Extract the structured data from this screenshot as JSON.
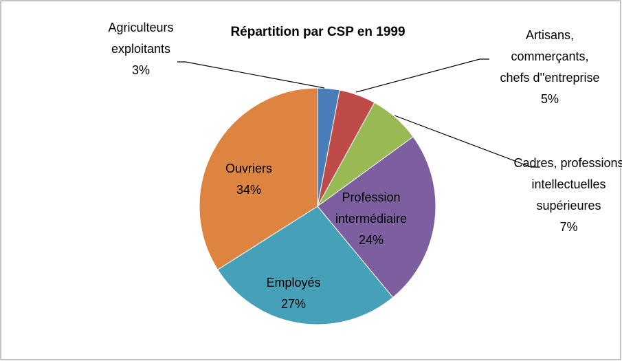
{
  "chart_data": {
    "type": "pie",
    "title": "Répartition par CSP en 1999",
    "categories": [
      "Agriculteurs exploitants",
      "Artisans, commerçants, chefs d''entreprise",
      "Cadres, professions intellectuelles supérieures",
      "Profession intermédiaire",
      "Employés",
      "Ouvriers"
    ],
    "values": [
      3,
      5,
      7,
      24,
      27,
      34
    ],
    "value_labels": [
      "3%",
      "5%",
      "7%",
      "24%",
      "27%",
      "34%"
    ],
    "colors": [
      "#4a7ebb",
      "#be4b48",
      "#98b954",
      "#7d5fa0",
      "#46a0b8",
      "#dd8540"
    ]
  }
}
